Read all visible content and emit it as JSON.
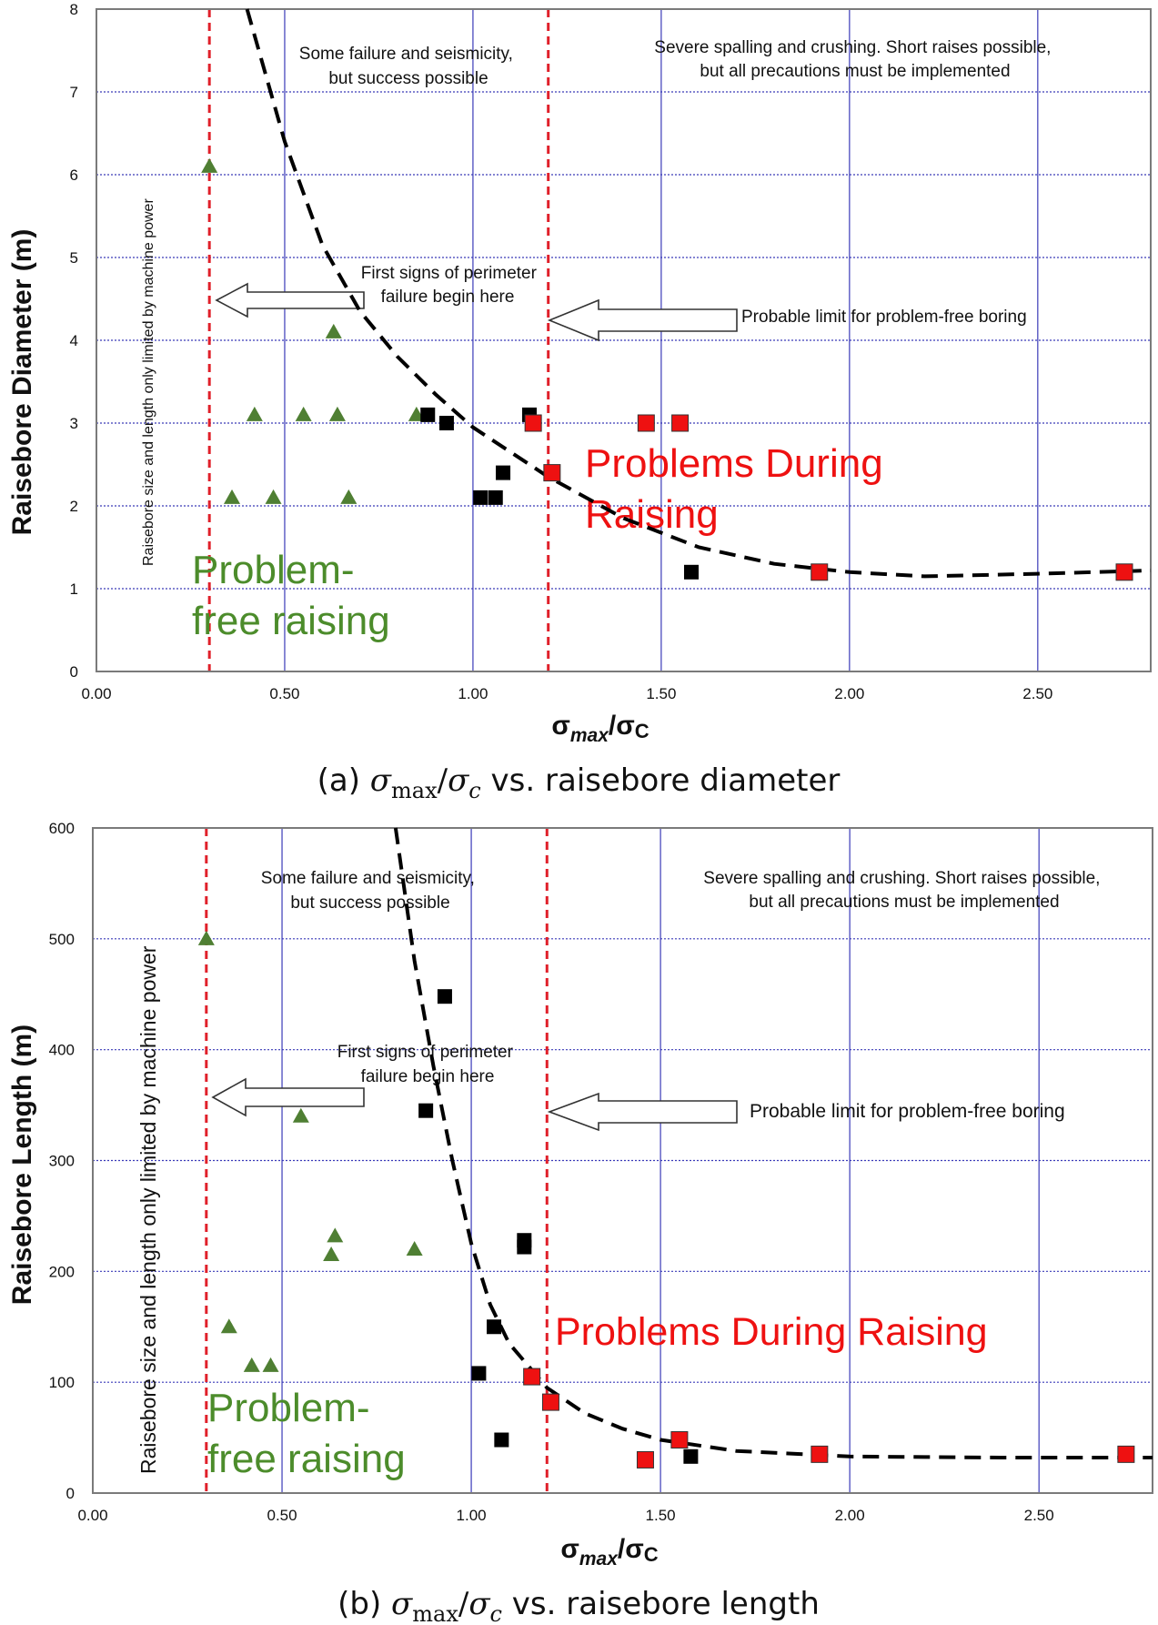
{
  "chart_data": [
    {
      "type": "scatter",
      "caption": {
        "prefix": "(a) ",
        "sigma": "σ",
        "max": "max",
        "c": "c",
        "suffix": " vs. raisebore diameter"
      },
      "xlabel": {
        "sigma": "σ",
        "max": "max",
        "rest": "/σ",
        "c": "C"
      },
      "ylabel": "Raisebore Diameter (m)",
      "xlim": [
        0,
        2.8
      ],
      "ylim": [
        0,
        8
      ],
      "xticks": [
        0,
        0.5,
        1.0,
        1.5,
        2.0,
        2.5
      ],
      "xtick_labels": [
        "0.00",
        "0.50",
        "1.00",
        "1.50",
        "2.00",
        "2.50"
      ],
      "yticks": [
        0,
        1,
        2,
        3,
        4,
        5,
        6,
        7,
        8
      ],
      "ytick_labels": [
        "0",
        "1",
        "2",
        "3",
        "4",
        "5",
        "6",
        "7",
        "8"
      ],
      "grid": true,
      "vlines": [
        0.3,
        1.2
      ],
      "annotations": {
        "vertical_note": "Raisebore size and length only limited by machine power",
        "some_failure": [
          "Some failure and seismicity,",
          "but success possible"
        ],
        "severe": [
          "Severe spalling and crushing. Short raises possible,",
          "but all precautions must be implemented"
        ],
        "first_signs": [
          "First signs of perimeter",
          "failure begin here"
        ],
        "probable_limit": "Probable limit for problem-free boring",
        "problem_free": [
          "Problem-",
          "free raising"
        ],
        "problems_during": [
          "Problems During",
          "Raising"
        ]
      },
      "colors": {
        "triangle": "#4f7f33",
        "black": "#000000",
        "red": "#ee1111",
        "vline": "#e0202a",
        "green_text": "#4c8c2b",
        "red_text": "#ee1111"
      },
      "series": [
        {
          "marker": "triangle",
          "x": [
            0.3,
            0.36,
            0.42,
            0.47,
            0.55,
            0.63,
            0.64,
            0.67,
            0.85
          ],
          "y": [
            6.1,
            2.1,
            3.1,
            2.1,
            3.1,
            4.1,
            3.1,
            2.1,
            3.1
          ]
        },
        {
          "marker": "square-black",
          "x": [
            0.88,
            0.93,
            1.02,
            1.06,
            1.08,
            1.15,
            1.58
          ],
          "y": [
            3.1,
            3.0,
            2.1,
            2.1,
            2.4,
            3.1,
            1.2
          ]
        },
        {
          "marker": "square-red",
          "x": [
            1.16,
            1.21,
            1.46,
            1.55,
            1.92,
            2.73
          ],
          "y": [
            3.0,
            2.4,
            3.0,
            3.0,
            1.2,
            1.2
          ]
        }
      ],
      "curve": {
        "x": [
          0.4,
          0.5,
          0.6,
          0.7,
          0.8,
          0.9,
          1.0,
          1.1,
          1.2,
          1.4,
          1.6,
          1.8,
          2.0,
          2.2,
          2.5,
          2.8
        ],
        "y": [
          8.0,
          6.4,
          5.15,
          4.35,
          3.8,
          3.35,
          2.95,
          2.65,
          2.35,
          1.85,
          1.5,
          1.3,
          1.2,
          1.15,
          1.18,
          1.22
        ]
      }
    },
    {
      "type": "scatter",
      "caption": {
        "prefix": "(b) ",
        "sigma": "σ",
        "max": "max",
        "c": "c",
        "suffix": " vs. raisebore length"
      },
      "xlabel": {
        "sigma": "σ",
        "max": "max",
        "rest": "/σ",
        "c": "C"
      },
      "ylabel": "Raisebore Length (m)",
      "xlim": [
        0,
        2.8
      ],
      "ylim": [
        0,
        600
      ],
      "xticks": [
        0,
        0.5,
        1.0,
        1.5,
        2.0,
        2.5
      ],
      "xtick_labels": [
        "0.00",
        "0.50",
        "1.00",
        "1.50",
        "2.00",
        "2.50"
      ],
      "yticks": [
        0,
        100,
        200,
        300,
        400,
        500,
        600
      ],
      "ytick_labels": [
        "0",
        "100",
        "200",
        "300",
        "400",
        "500",
        "600"
      ],
      "grid": true,
      "vlines": [
        0.3,
        1.2
      ],
      "annotations": {
        "vertical_note": "Raisebore size and length only limited by machine power",
        "some_failure": [
          "Some failure and seismicity,",
          "but success possible"
        ],
        "severe": [
          "Severe spalling and crushing. Short raises possible,",
          "but all precautions must be implemented"
        ],
        "first_signs": [
          "First signs of perimeter",
          "failure begin here"
        ],
        "probable_limit": "Probable limit for problem-free boring",
        "problem_free": [
          "Problem-",
          "free raising"
        ],
        "problems_during": [
          "Problems  During Raising"
        ]
      },
      "colors": {
        "triangle": "#4f7f33",
        "black": "#000000",
        "red": "#ee1111",
        "vline": "#e0202a",
        "green_text": "#4c8c2b",
        "red_text": "#ee1111"
      },
      "series": [
        {
          "marker": "triangle",
          "x": [
            0.3,
            0.36,
            0.42,
            0.47,
            0.55,
            0.63,
            0.64,
            0.85
          ],
          "y": [
            500,
            150,
            115,
            115,
            340,
            215,
            232,
            220
          ]
        },
        {
          "marker": "square-black",
          "x": [
            0.88,
            0.93,
            1.02,
            1.06,
            1.08,
            1.14,
            1.14,
            1.58
          ],
          "y": [
            345,
            448,
            108,
            150,
            48,
            228,
            222,
            33
          ]
        },
        {
          "marker": "square-red",
          "x": [
            1.16,
            1.21,
            1.46,
            1.55,
            1.92,
            2.73
          ],
          "y": [
            105,
            82,
            30,
            48,
            35,
            35
          ]
        }
      ],
      "curve": {
        "x": [
          0.8,
          0.85,
          0.9,
          0.95,
          1.0,
          1.05,
          1.1,
          1.2,
          1.3,
          1.4,
          1.5,
          1.7,
          2.0,
          2.4,
          2.8
        ],
        "y": [
          600,
          480,
          385,
          300,
          225,
          170,
          135,
          95,
          72,
          58,
          48,
          38,
          33,
          32,
          32
        ]
      }
    }
  ]
}
